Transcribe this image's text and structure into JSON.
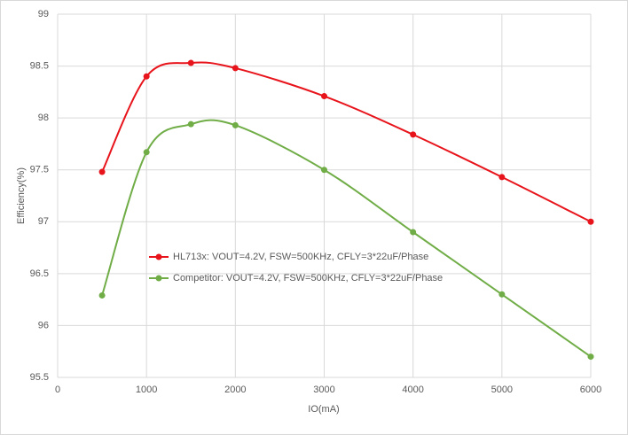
{
  "chart_data": {
    "type": "line",
    "x_label": "IO(mA)",
    "y_label": "Efficiency(%)",
    "x": [
      500,
      1000,
      1500,
      2000,
      3000,
      4000,
      5000,
      6000
    ],
    "series": [
      {
        "name": "HL713x: VOUT=4.2V, FSW=500KHz, CFLY=3*22uF/Phase",
        "color": "#e8141b",
        "values": [
          97.48,
          98.4,
          98.53,
          98.48,
          98.21,
          97.84,
          97.43,
          97.0
        ]
      },
      {
        "name": "Competitor: VOUT=4.2V, FSW=500KHz, CFLY=3*22uF/Phase",
        "color": "#70ad47",
        "values": [
          96.29,
          97.67,
          97.94,
          97.93,
          97.5,
          96.9,
          96.3,
          95.7
        ]
      }
    ],
    "xlim": [
      0,
      6000
    ],
    "xticks": [
      0,
      1000,
      2000,
      3000,
      4000,
      5000,
      6000
    ],
    "ylim": [
      95.5,
      99
    ],
    "yticks": [
      95.5,
      96,
      96.5,
      97,
      97.5,
      98,
      98.5,
      99
    ],
    "grid": true,
    "smooth": true
  }
}
